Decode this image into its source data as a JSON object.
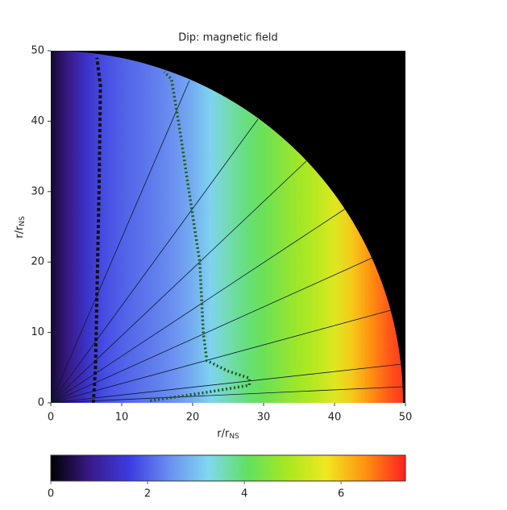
{
  "chart_data": {
    "type": "heatmap",
    "title": "Dip: magnetic field",
    "xlabel": "r/r",
    "xlabel_sub": "NS",
    "ylabel": "r/r",
    "ylabel_sub": "NS",
    "xlim": [
      0,
      50
    ],
    "ylim": [
      0,
      50
    ],
    "xticks": [
      0,
      10,
      20,
      30,
      40,
      50
    ],
    "yticks": [
      0,
      10,
      20,
      30,
      40,
      50
    ],
    "x": [
      0,
      2.5,
      5,
      7.5,
      10,
      12.5,
      15,
      17.5,
      20,
      22.5,
      25,
      27.5,
      30,
      32.5,
      35,
      37.5,
      40,
      42.5,
      45,
      47.5,
      50
    ],
    "values": [
      0.3,
      0.8,
      1.4,
      1.8,
      2.0,
      2.15,
      2.3,
      2.5,
      2.8,
      3.2,
      3.6,
      3.9,
      4.2,
      4.5,
      4.8,
      5.1,
      5.5,
      6.0,
      6.5,
      6.9,
      7.2
    ],
    "colorbar_lim": [
      0,
      7.33
    ],
    "colorbar_ticks": [
      0,
      2,
      4,
      6
    ],
    "colormap": [
      "#000000",
      "#3a1a8a",
      "#3c3ce0",
      "#6a8ef0",
      "#80d8f0",
      "#60e060",
      "#a8e820",
      "#f0e820",
      "#ff9010",
      "#ff2020"
    ],
    "series": [
      {
        "color": "#111111",
        "style": "dashed",
        "x": [
          6,
          6.3,
          6.5,
          6.8,
          7,
          6.5
        ],
        "y": [
          0,
          5,
          15,
          30,
          45,
          49
        ]
      },
      {
        "color": "#1e5a1e",
        "style": "dotted",
        "x": [
          14,
          22,
          28,
          28,
          25,
          22,
          21.5,
          21,
          19.5,
          18,
          17,
          16
        ],
        "y": [
          0.3,
          1.5,
          2.5,
          3.5,
          4.5,
          6,
          10,
          20,
          30,
          40,
          46,
          47
        ]
      }
    ]
  }
}
